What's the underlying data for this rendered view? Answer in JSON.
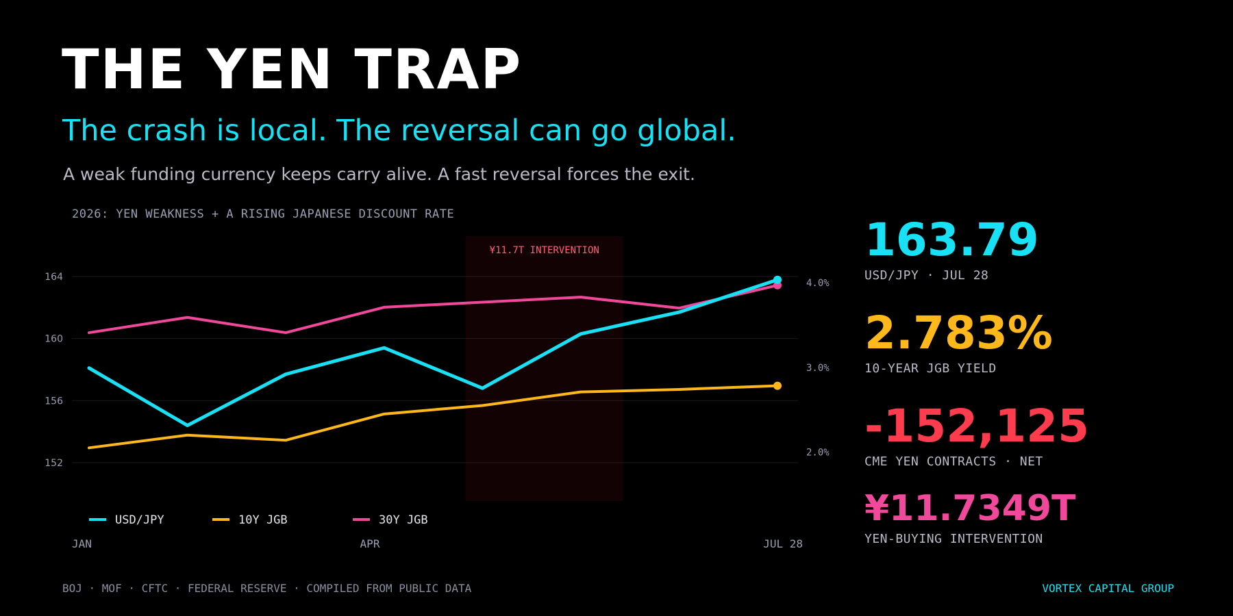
{
  "header": {
    "title": "THE YEN TRAP",
    "subtitle": "The crash is local. The reversal can go global.",
    "tagline": "A weak funding currency keeps carry alive. A fast reversal forces the exit."
  },
  "chart_heading": "2026: YEN WEAKNESS + A RISING JAPANESE DISCOUNT RATE",
  "chart_data": {
    "type": "line",
    "title": "2026: YEN WEAKNESS + A RISING JAPANESE DISCOUNT RATE",
    "x_tick_labels": [
      "JAN",
      "APR",
      "JUL 28"
    ],
    "x_points": 8,
    "left_axis": {
      "ticks": [
        152,
        156,
        160,
        164
      ],
      "ylim": [
        150.5,
        166.6
      ]
    },
    "right_axis": {
      "ticks": [
        "2.0%",
        "3.0%",
        "4.0%"
      ],
      "tick_values": [
        2.0,
        3.0,
        4.0
      ],
      "ylim": [
        1.6,
        4.55
      ]
    },
    "series": [
      {
        "name": "USD/JPY",
        "axis": "left",
        "color": "#19e1f5",
        "values": [
          158.1,
          154.4,
          157.7,
          159.4,
          156.8,
          160.3,
          161.7,
          163.79
        ]
      },
      {
        "name": "10Y JGB",
        "axis": "right",
        "color": "#ffb81c",
        "values": [
          2.05,
          2.2,
          2.14,
          2.45,
          2.55,
          2.71,
          2.74,
          2.783
        ]
      },
      {
        "name": "30Y JGB",
        "axis": "right",
        "color": "#f0489a",
        "values": [
          3.41,
          3.59,
          3.41,
          3.71,
          3.77,
          3.83,
          3.7,
          3.97
        ]
      }
    ],
    "annotation": {
      "label": "¥11.7T INTERVENTION",
      "x_start": 3.83,
      "x_end": 5.43
    },
    "grid": true,
    "legend": "bottom-left"
  },
  "stats": [
    {
      "value": "163.79",
      "label": "USD/JPY · JUL 28",
      "color": "#19e1f5"
    },
    {
      "value": "2.783%",
      "label": "10-YEAR JGB YIELD",
      "color": "#ffb81c"
    },
    {
      "value": "-152,125",
      "label": "CME YEN CONTRACTS · NET",
      "color": "#ff3b4e"
    },
    {
      "value": "¥11.7349T",
      "label": "YEN-BUYING INTERVENTION",
      "color": "#f0489a"
    }
  ],
  "footer": {
    "sources": "BOJ · MOF · CFTC · FEDERAL RESERVE · COMPILED FROM PUBLIC DATA",
    "brand": "VORTEX CAPITAL GROUP"
  }
}
